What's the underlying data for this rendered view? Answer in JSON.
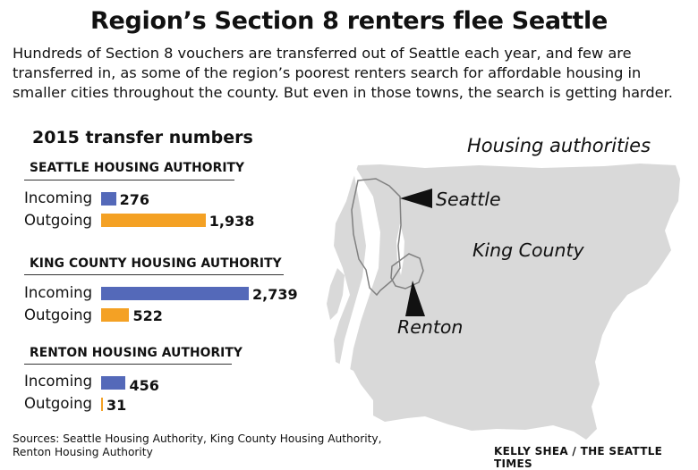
{
  "title": "Region’s Section 8 renters flee Seattle",
  "intro": "Hundreds of Section 8 vouchers are transferred out of Seattle each year, and few are transferred in, as some of the region’s poorest renters search for affordable housing in smaller cities throughout the county. But even in those towns, the search is getting harder.",
  "chart_data": {
    "type": "bar",
    "title": "2015 transfer numbers",
    "orientation": "horizontal",
    "categories": [
      "Incoming",
      "Outgoing"
    ],
    "xlim": [
      0,
      2739
    ],
    "groups": [
      {
        "name": "SEATTLE HOUSING AUTHORITY",
        "values": [
          276,
          1938
        ],
        "labels": [
          "276",
          "1,938"
        ]
      },
      {
        "name": "KING COUNTY HOUSING AUTHORITY",
        "values": [
          2739,
          522
        ],
        "labels": [
          "2,739",
          "522"
        ]
      },
      {
        "name": "RENTON HOUSING AUTHORITY",
        "values": [
          456,
          31
        ],
        "labels": [
          "456",
          "31"
        ]
      }
    ],
    "colors": {
      "Incoming": "#5469b9",
      "Outgoing": "#f4a124"
    }
  },
  "map": {
    "title": "Housing authorities",
    "labels": {
      "seattle": "Seattle",
      "king_county": "King County",
      "renton": "Renton"
    },
    "colors": {
      "land": "#d9d9d9",
      "outline": "#808080"
    }
  },
  "footer": {
    "sources": "Sources: Seattle Housing Authority, King County Housing Authority, Renton Housing Authority",
    "credit": "KELLY SHEA / THE SEATTLE TIMES"
  }
}
